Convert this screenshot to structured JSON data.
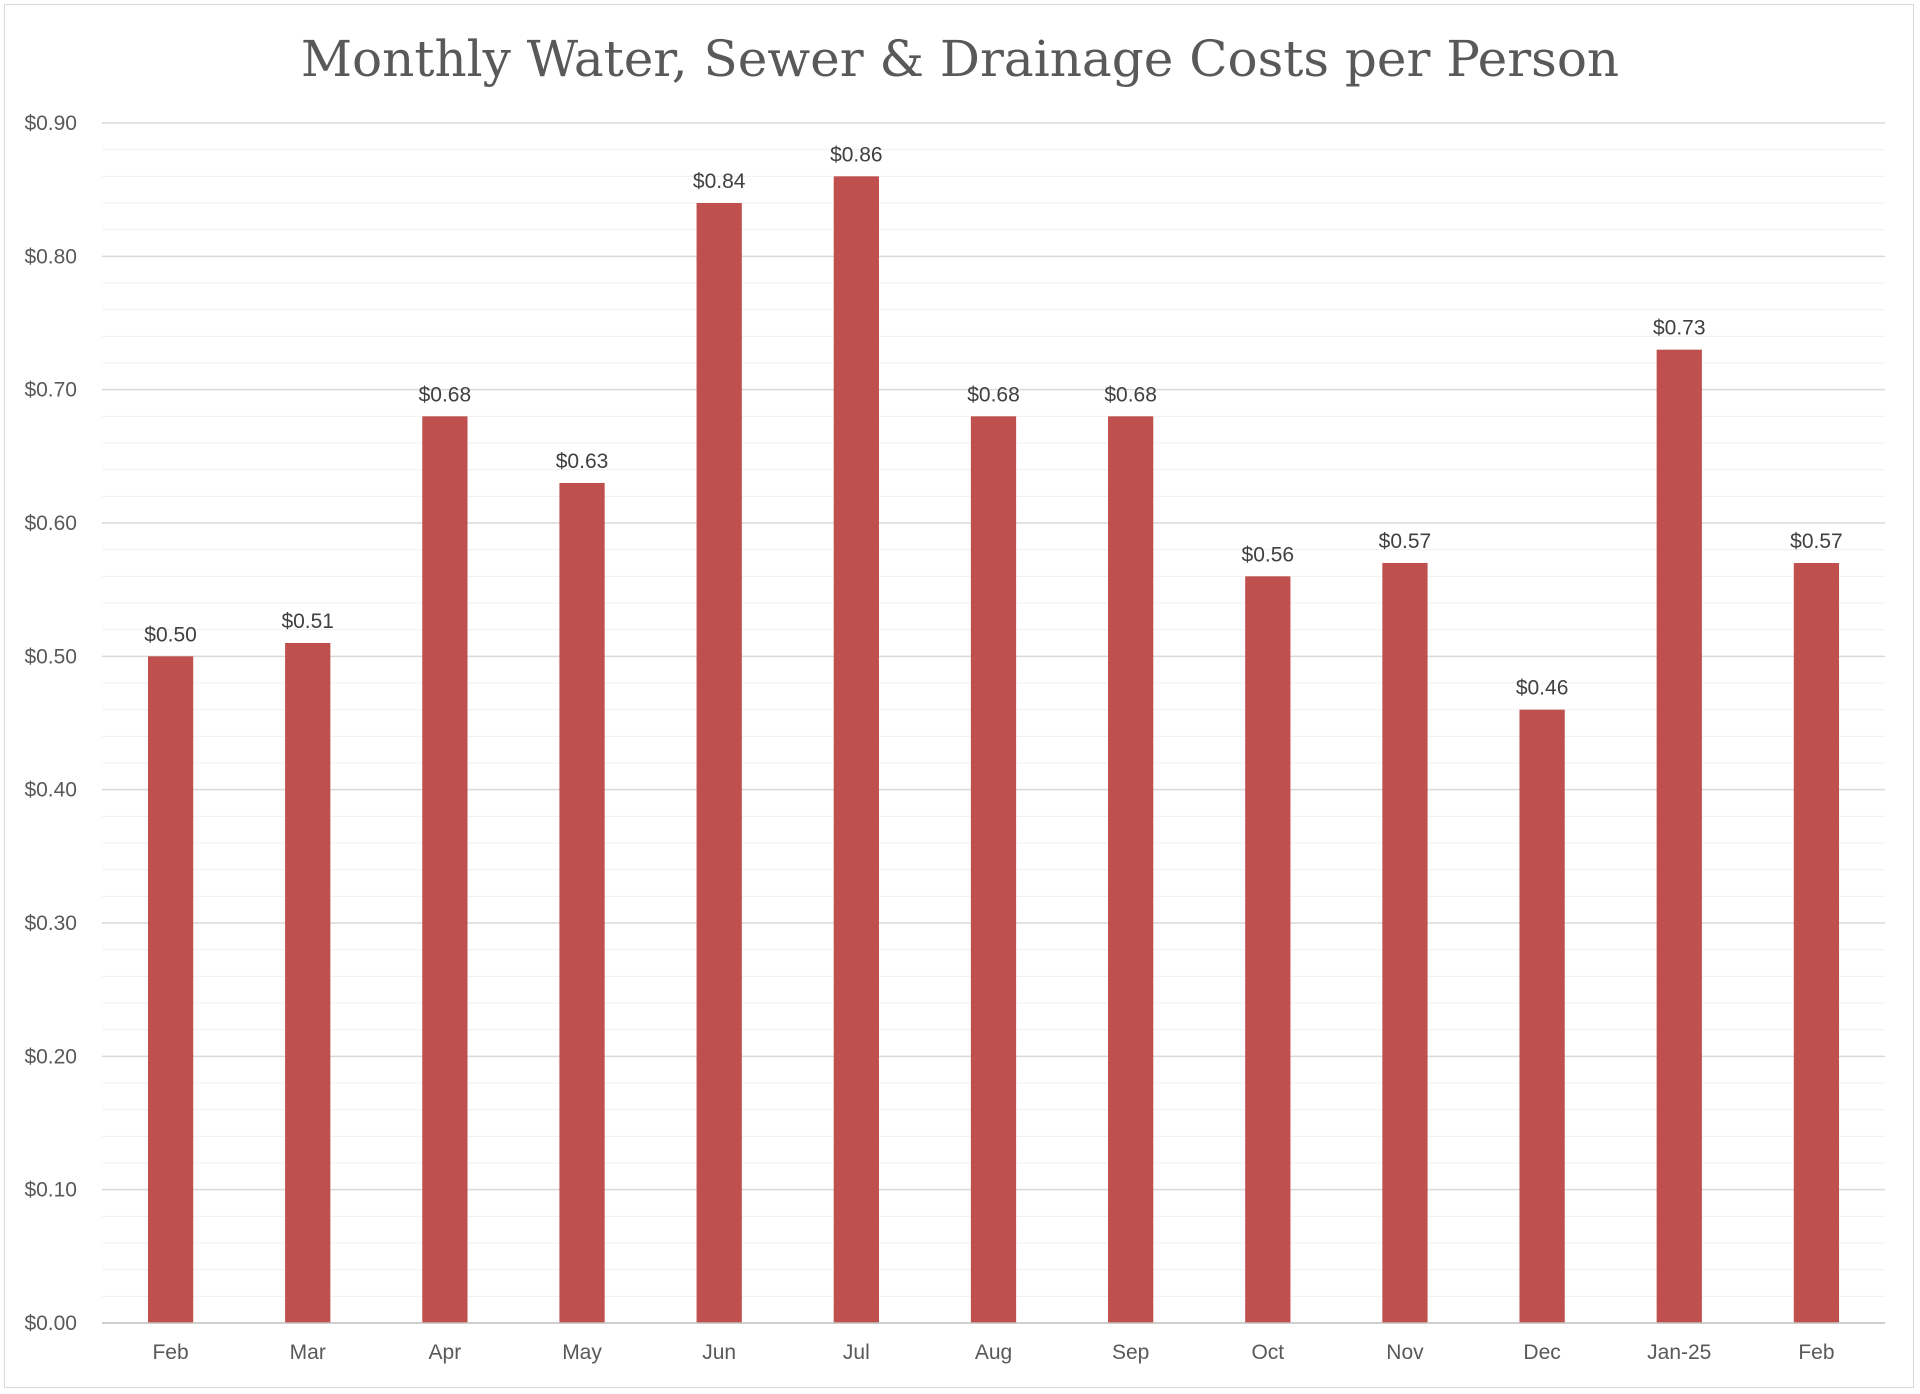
{
  "chart_data": {
    "type": "bar",
    "title": "Monthly Water, Sewer & Drainage Costs per Person",
    "xlabel": "",
    "ylabel": "",
    "categories": [
      "Feb",
      "Mar",
      "Apr",
      "May",
      "Jun",
      "Jul",
      "Aug",
      "Sep",
      "Oct",
      "Nov",
      "Dec",
      "Jan-25",
      "Feb"
    ],
    "values": [
      0.5,
      0.51,
      0.68,
      0.63,
      0.84,
      0.86,
      0.68,
      0.68,
      0.56,
      0.57,
      0.46,
      0.73,
      0.57
    ],
    "data_labels": [
      "$0.50",
      "$0.51",
      "$0.68",
      "$0.63",
      "$0.84",
      "$0.86",
      "$0.68",
      "$0.68",
      "$0.56",
      "$0.57",
      "$0.46",
      "$0.73",
      "$0.57"
    ],
    "ylim": [
      0,
      0.9
    ],
    "yticks": [
      0,
      0.1,
      0.2,
      0.3,
      0.4,
      0.5,
      0.6,
      0.7,
      0.8,
      0.9
    ],
    "ytick_labels": [
      "$0.00",
      "$0.10",
      "$0.20",
      "$0.30",
      "$0.40",
      "$0.50",
      "$0.60",
      "$0.70",
      "$0.80",
      "$0.90"
    ],
    "grid": true,
    "minor_grid": true,
    "legend": "none",
    "bar_color": "#c0504d"
  }
}
